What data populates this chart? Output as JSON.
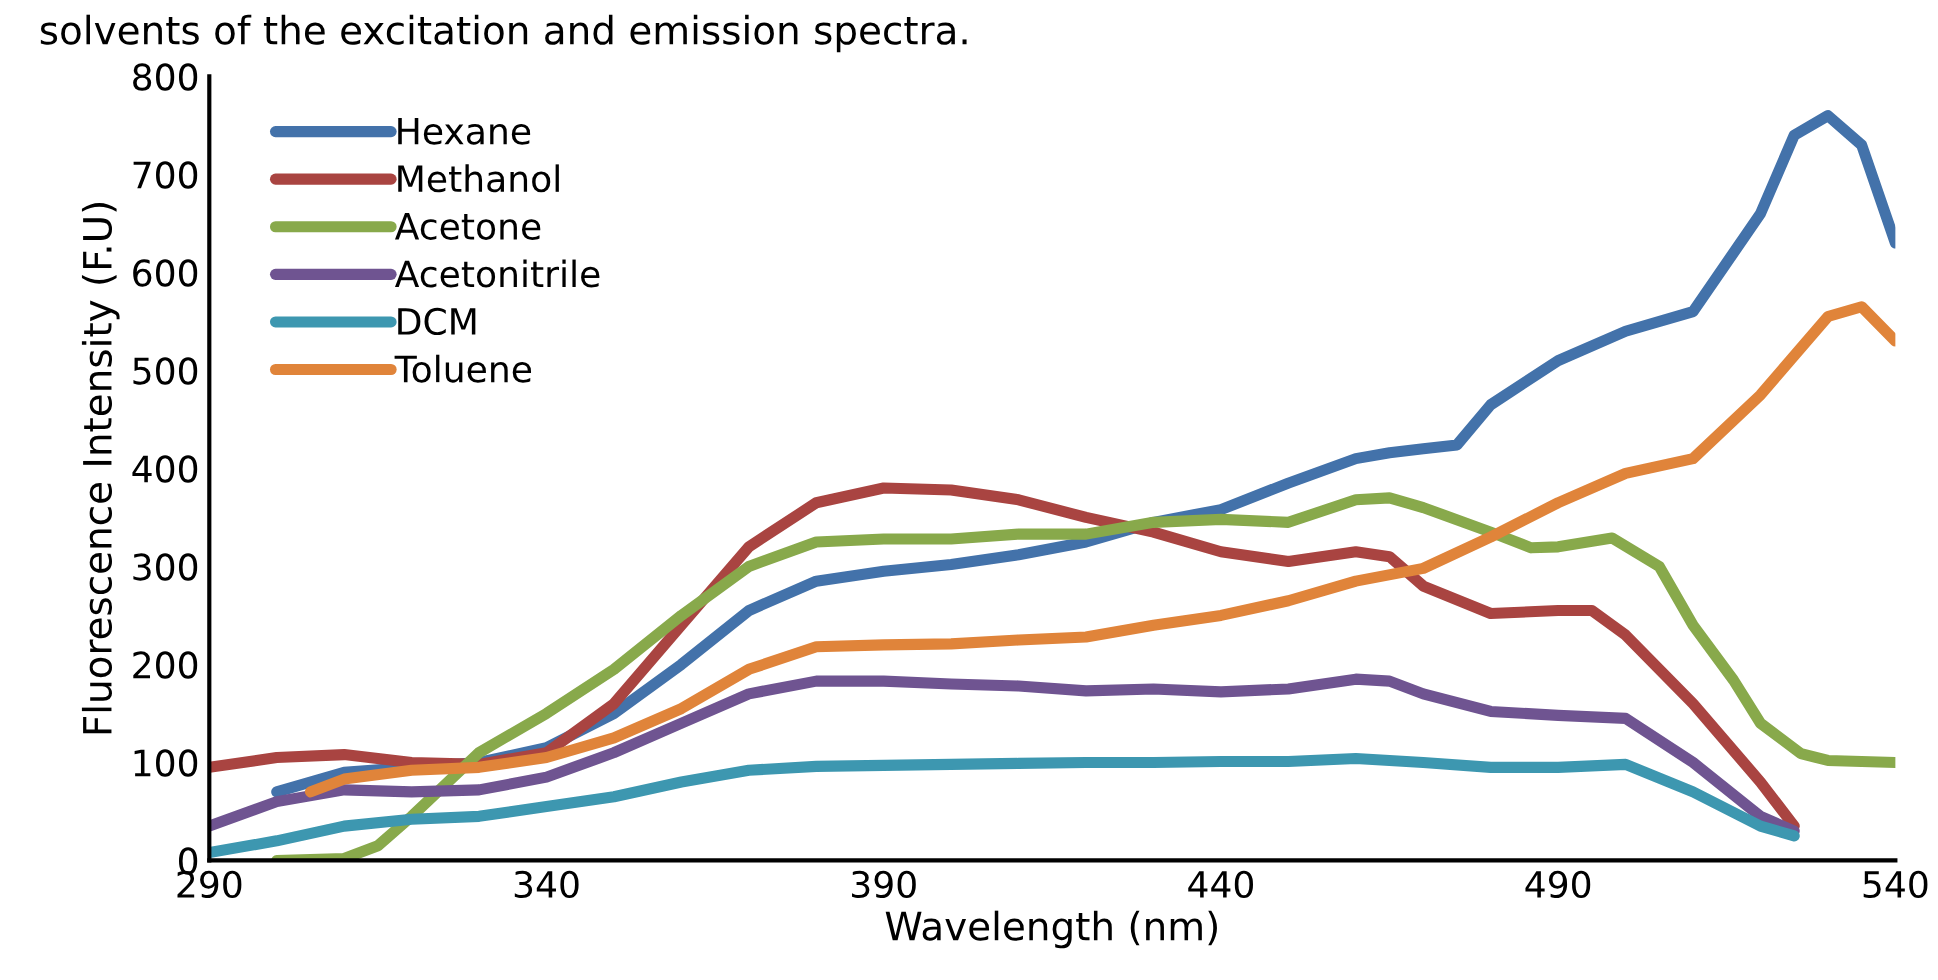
{
  "chart_data": {
    "type": "line",
    "xlabel": "Wavelength (nm)",
    "ylabel": "Fluorescence Intensity (F.U)",
    "annotations": [
      "solvents of the excitation and emission spectra."
    ],
    "xlim": [
      290,
      540
    ],
    "xticks": [
      290,
      340,
      390,
      440,
      490,
      540
    ],
    "ylim": [
      0,
      800
    ],
    "yticks": [
      0,
      100,
      200,
      300,
      400,
      500,
      600,
      700,
      800
    ],
    "grid": false,
    "legend": "top left",
    "marker": "none",
    "line_style": "solid",
    "series": [
      {
        "name": "Hexane",
        "color": "#4372aa",
        "x": [
          300,
          310,
          330,
          340,
          350,
          360,
          370,
          380,
          390,
          400,
          410,
          420,
          430,
          440,
          450,
          460,
          465,
          470,
          475,
          480,
          490,
          500,
          510,
          520,
          525,
          530,
          535,
          540
        ],
        "values": [
          70,
          90,
          100,
          115,
          150,
          200,
          255,
          285,
          295,
          302,
          312,
          325,
          345,
          358,
          385,
          410,
          416,
          420,
          424,
          465,
          510,
          540,
          560,
          660,
          740,
          760,
          730,
          630
        ]
      },
      {
        "name": "Methanol",
        "color": "#a94441",
        "x": [
          290,
          300,
          310,
          320,
          330,
          340,
          350,
          360,
          370,
          380,
          390,
          400,
          410,
          420,
          430,
          440,
          450,
          460,
          465,
          470,
          480,
          490,
          495,
          500,
          510,
          520,
          525
        ],
        "values": [
          95,
          105,
          108,
          100,
          98,
          110,
          160,
          240,
          320,
          365,
          380,
          378,
          368,
          350,
          335,
          315,
          305,
          315,
          310,
          280,
          252,
          255,
          255,
          230,
          160,
          80,
          35
        ]
      },
      {
        "name": "Acetone",
        "color": "#88a94b",
        "x": [
          300,
          310,
          315,
          320,
          330,
          340,
          350,
          360,
          370,
          380,
          390,
          400,
          410,
          420,
          430,
          440,
          450,
          460,
          465,
          470,
          480,
          486,
          490,
          498,
          505,
          510,
          516,
          520,
          526,
          530,
          540
        ],
        "values": [
          0,
          2,
          15,
          45,
          110,
          150,
          195,
          250,
          300,
          325,
          328,
          328,
          333,
          333,
          345,
          348,
          345,
          368,
          370,
          360,
          335,
          319,
          320,
          329,
          300,
          240,
          184,
          140,
          109,
          102,
          100
        ]
      },
      {
        "name": "Acetonitrile",
        "color": "#6f5491",
        "x": [
          290,
          300,
          310,
          320,
          330,
          340,
          350,
          360,
          370,
          380,
          390,
          400,
          410,
          420,
          430,
          440,
          450,
          460,
          465,
          470,
          480,
          490,
          500,
          510,
          520,
          525
        ],
        "values": [
          35,
          60,
          72,
          70,
          72,
          85,
          110,
          140,
          170,
          183,
          183,
          180,
          178,
          173,
          175,
          172,
          175,
          185,
          183,
          170,
          152,
          148,
          145,
          100,
          45,
          30
        ]
      },
      {
        "name": "DCM",
        "color": "#3d97b0",
        "x": [
          290,
          300,
          310,
          320,
          330,
          340,
          350,
          360,
          370,
          380,
          390,
          400,
          410,
          420,
          430,
          440,
          450,
          460,
          470,
          480,
          490,
          500,
          510,
          520,
          525
        ],
        "values": [
          8,
          20,
          35,
          42,
          45,
          55,
          65,
          80,
          92,
          96,
          97,
          98,
          99,
          100,
          100,
          101,
          101,
          104,
          100,
          95,
          95,
          98,
          70,
          35,
          25
        ]
      },
      {
        "name": "Toluene",
        "color": "#e0843a",
        "x": [
          305,
          310,
          320,
          330,
          340,
          350,
          360,
          370,
          380,
          390,
          400,
          410,
          420,
          430,
          440,
          450,
          460,
          470,
          480,
          490,
          500,
          510,
          520,
          530,
          535,
          540
        ],
        "values": [
          70,
          83,
          92,
          95,
          105,
          125,
          155,
          195,
          218,
          220,
          221,
          225,
          228,
          240,
          250,
          265,
          285,
          298,
          330,
          365,
          395,
          410,
          475,
          555,
          565,
          530
        ]
      }
    ]
  }
}
